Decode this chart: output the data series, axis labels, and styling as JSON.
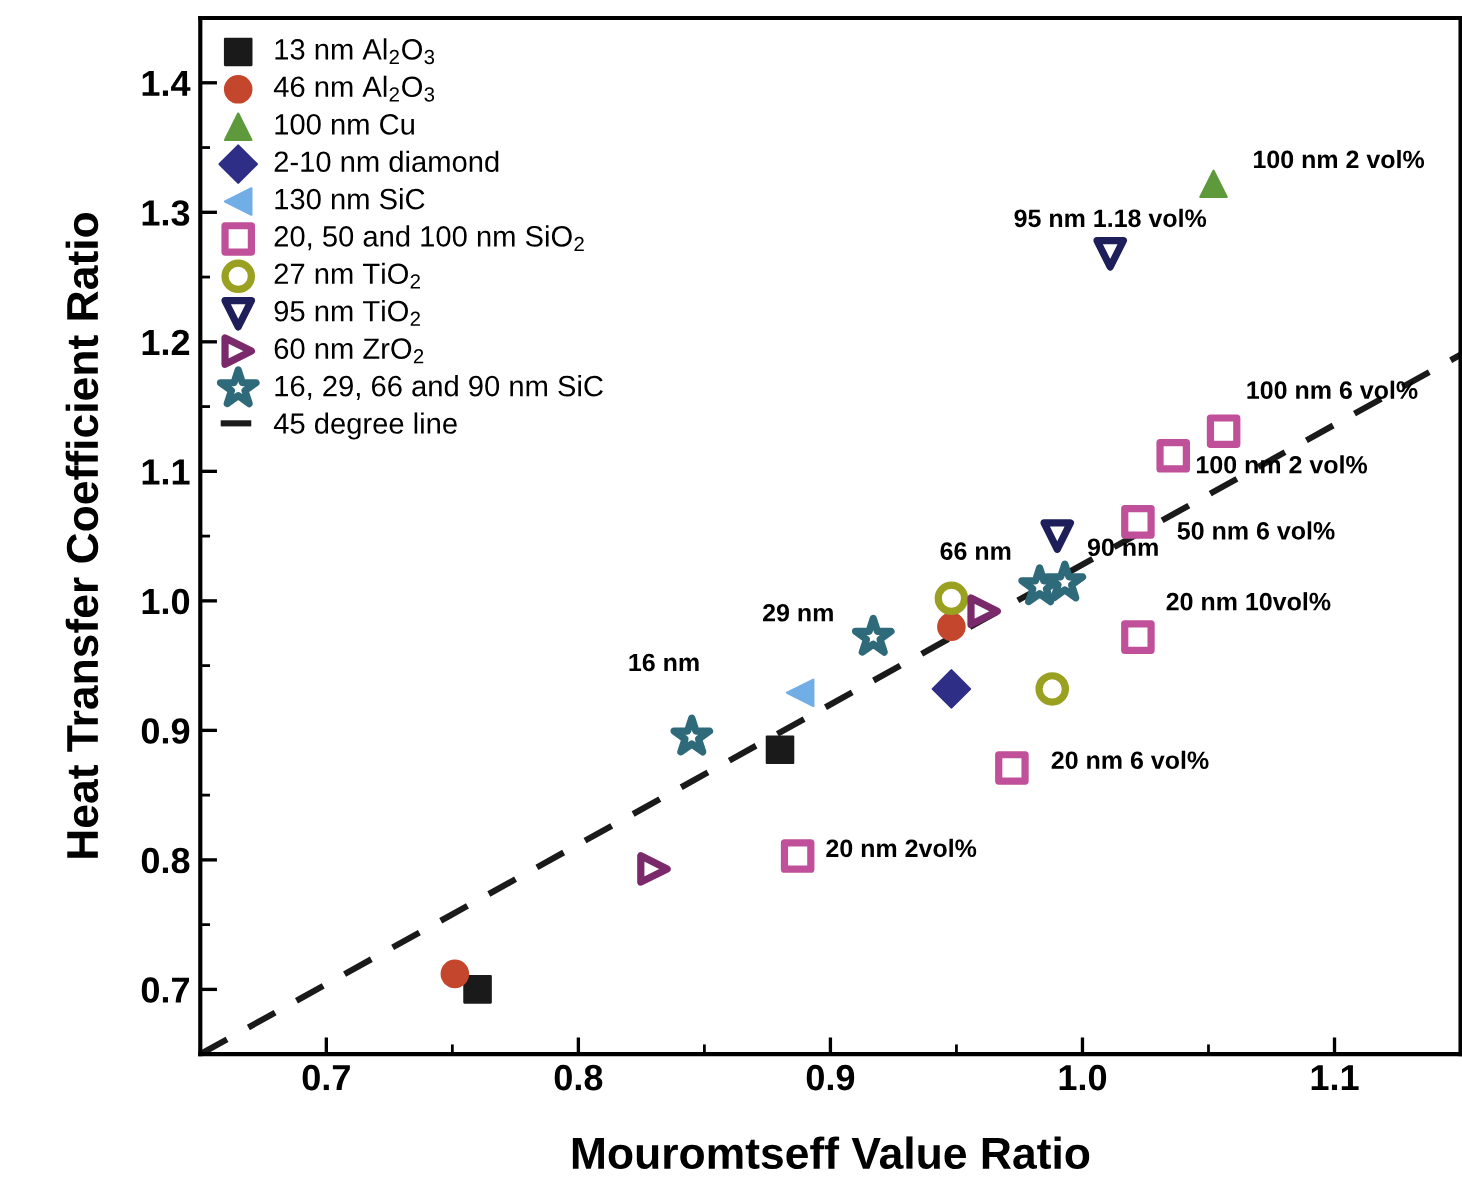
{
  "chart_data": {
    "type": "scatter",
    "xlabel": "Mouromtseff Value Ratio",
    "ylabel": "Heat Transfer Coefficient Ratio",
    "xlim": [
      0.65,
      1.15
    ],
    "xticks": [
      {
        "value": 0.7,
        "label": "0.7"
      },
      {
        "value": 0.8,
        "label": "0.8"
      },
      {
        "value": 0.9,
        "label": "0.9"
      },
      {
        "value": 1.0,
        "label": "1.0"
      },
      {
        "value": 1.1,
        "label": "1.1"
      }
    ],
    "ylim": [
      0.65,
      1.45
    ],
    "yticks": [
      {
        "value": 0.7,
        "label": "0.7"
      },
      {
        "value": 0.8,
        "label": "0.8"
      },
      {
        "value": 0.9,
        "label": "0.9"
      },
      {
        "value": 1.0,
        "label": "1.0"
      },
      {
        "value": 1.1,
        "label": "1.1"
      },
      {
        "value": 1.2,
        "label": "1.2"
      },
      {
        "value": 1.3,
        "label": "1.3"
      },
      {
        "value": 1.4,
        "label": "1.4"
      }
    ],
    "grid": false,
    "legend": "top left",
    "series": [
      {
        "name": "13 nm Al$_{2}$O$_{3}$",
        "color": "#1a1a1a",
        "marker": "square",
        "x": [
          0.76,
          0.88
        ],
        "values": [
          0.7,
          0.885
        ]
      },
      {
        "name": "46 nm Al$_{2}$O$_{3}$",
        "color": "#c4462c",
        "marker": "circle",
        "x": [
          0.751,
          0.948
        ],
        "values": [
          0.712,
          0.98
        ]
      },
      {
        "name": "100 nm Cu",
        "color": "#5e9a3c",
        "marker": "triangle",
        "x": [
          1.052
        ],
        "values": [
          1.322
        ]
      },
      {
        "name": "2-10 nm diamond",
        "color": "#2e2e86",
        "marker": "diamond",
        "x": [
          0.948
        ],
        "values": [
          0.932
        ]
      },
      {
        "name": "130 nm SiC",
        "color": "#72aee6",
        "marker": "triangle-left",
        "x": [
          0.888
        ],
        "values": [
          0.929
        ]
      },
      {
        "name": "20, 50 and 100 nm SiO$_{2}$",
        "color": "#c0509a",
        "marker": "square-open",
        "x": [
          0.887,
          0.972,
          1.022,
          1.022,
          1.036,
          1.056
        ],
        "values": [
          0.803,
          0.871,
          0.972,
          1.061,
          1.112,
          1.131
        ]
      },
      {
        "name": "27 nm TiO$_{2}$",
        "color": "#9aa020",
        "marker": "circle-open",
        "x": [
          0.948,
          0.988
        ],
        "values": [
          1.002,
          0.932
        ]
      },
      {
        "name": "95 nm TiO$_{2}$",
        "color": "#1e1e5a",
        "marker": "triangle-down-open",
        "x": [
          1.011,
          0.99
        ],
        "values": [
          1.268,
          1.05
        ]
      },
      {
        "name": "60 nm ZrO$_{2}$",
        "color": "#7a2a6a",
        "marker": "triangle-right-open",
        "x": [
          0.83,
          0.961
        ],
        "values": [
          0.793,
          0.992
        ]
      },
      {
        "name": "16, 29, 66 and 90 nm SiC",
        "color": "#2e6a7a",
        "marker": "star-open",
        "x": [
          0.845,
          0.917,
          0.983,
          0.993
        ],
        "values": [
          0.895,
          0.972,
          1.011,
          1.014
        ]
      },
      {
        "name": "45 degree line",
        "type": "line",
        "line_style": "dashed",
        "marker": "none",
        "color": "#1a1a1a",
        "x": [
          0.65,
          1.15
        ],
        "values": [
          0.65,
          1.19
        ]
      }
    ],
    "annotations": [
      {
        "text": "100 nm 2 vol%",
        "x": 1.052,
        "y": 1.322
      },
      {
        "text": "95 nm 1.18 vol%",
        "x": 1.011,
        "y": 1.268
      },
      {
        "text": "100 nm 6 vol%",
        "x": 1.056,
        "y": 1.131
      },
      {
        "text": "100 nm 2 vol%",
        "x": 1.036,
        "y": 1.112
      },
      {
        "text": "50 nm 6 vol%",
        "x": 1.022,
        "y": 1.061
      },
      {
        "text": "20 nm 10vol%",
        "x": 1.022,
        "y": 0.972
      },
      {
        "text": "20 nm 6 vol%",
        "x": 0.972,
        "y": 0.871
      },
      {
        "text": "20 nm 2vol%",
        "x": 0.887,
        "y": 0.803
      },
      {
        "text": "16 nm",
        "x": 0.845,
        "y": 0.895
      },
      {
        "text": "29 nm",
        "x": 0.917,
        "y": 0.972
      },
      {
        "text": "66 nm",
        "x": 0.983,
        "y": 1.011
      },
      {
        "text": "90 nm",
        "x": 0.993,
        "y": 1.014
      }
    ]
  }
}
